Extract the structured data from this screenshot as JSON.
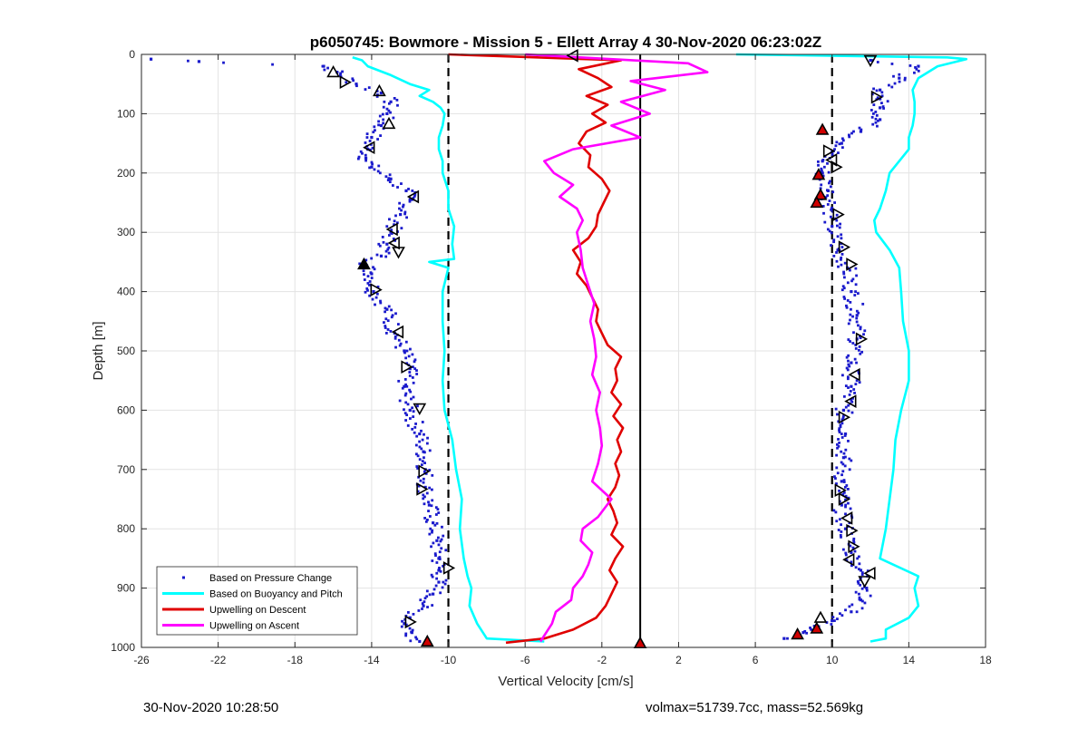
{
  "chart_data": {
    "type": "scatter",
    "title": "p6050745: Bowmore - Mission 5 - Ellett Array 4 30-Nov-2020 06:23:02Z",
    "xlabel": "Vertical Velocity [cm/s]",
    "ylabel": "Depth [m]",
    "xlim": [
      -26,
      18
    ],
    "ylim": [
      0,
      1000
    ],
    "y_reversed": true,
    "grid": true,
    "legend_position": "bottom-left",
    "x_ticks": [
      -26,
      -22,
      -18,
      -14,
      -10,
      -6,
      -2,
      2,
      6,
      10,
      14,
      18
    ],
    "y_ticks": [
      0,
      100,
      200,
      300,
      400,
      500,
      600,
      700,
      800,
      900,
      1000
    ],
    "reference_lines": [
      {
        "x": -10,
        "style": "dashed",
        "color": "#000000"
      },
      {
        "x": 10,
        "style": "dashed",
        "color": "#000000"
      },
      {
        "x": 0,
        "style": "solid",
        "color": "#000000"
      }
    ],
    "series": [
      {
        "name": "Based on Pressure Change",
        "style": "dots",
        "color": "#1a1acc",
        "profiles": [
          {
            "depth": [
              8,
              12,
              20,
              30,
              50,
              65,
              80,
              100,
              120,
              140,
              160,
              175,
              190,
              210,
              230,
              245,
              270,
              300,
              320,
              340,
              355,
              370,
              400,
              430,
              470,
              500,
              530,
              560,
              600,
              640,
              670,
              700,
              730,
              760,
              790,
              820,
              850,
              870,
              890,
              910,
              930,
              950,
              960,
              975,
              990
            ],
            "velocity": [
              -25.5,
              -23,
              -16.5,
              -15.8,
              -14.8,
              -13.5,
              -13,
              -13.2,
              -13.5,
              -14,
              -14.2,
              -14.3,
              -14,
              -13,
              -12.2,
              -12,
              -12.5,
              -13,
              -13.2,
              -13.5,
              -14.3,
              -14,
              -13.9,
              -13.2,
              -12.8,
              -12.3,
              -12,
              -12.3,
              -12,
              -11.5,
              -11.3,
              -11.2,
              -11.2,
              -11,
              -10.8,
              -10.6,
              -10.5,
              -10.5,
              -10.5,
              -10.8,
              -11.3,
              -12,
              -12.3,
              -11.9,
              -11.5
            ]
          },
          {
            "depth": [
              10,
              20,
              40,
              60,
              75,
              90,
              110,
              130,
              150,
              165,
              180,
              200,
              230,
              260,
              290,
              330,
              360,
              400,
              440,
              480,
              520,
              560,
              600,
              640,
              680,
              720,
              760,
              800,
              840,
              870,
              900,
              920,
              940,
              955,
              965,
              975,
              985
            ],
            "velocity": [
              12,
              14.5,
              13.5,
              12.5,
              12.5,
              12.5,
              12.5,
              11.5,
              10.5,
              10,
              9.5,
              9.5,
              9.8,
              10,
              10,
              10.3,
              10.8,
              11,
              11.3,
              11.3,
              11,
              11,
              10.6,
              10.7,
              10.6,
              10.5,
              10.5,
              10.7,
              11,
              11.5,
              11.8,
              11.5,
              11,
              10,
              9.3,
              8.5,
              7.5
            ]
          }
        ]
      },
      {
        "name": "Based on Buoyancy and Pitch",
        "style": "line",
        "color": "#00ffff",
        "profiles": [
          {
            "depth": [
              5,
              10,
              20,
              35,
              50,
              60,
              70,
              80,
              90,
              100,
              120,
              140,
              160,
              180,
              200,
              230,
              260,
              290,
              320,
              345,
              350,
              360,
              400,
              450,
              500,
              550,
              600,
              650,
              700,
              750,
              800,
              850,
              880,
              900,
              930,
              960,
              985,
              990
            ],
            "velocity": [
              -15,
              -14.5,
              -14.2,
              -13,
              -12,
              -11,
              -11.5,
              -10.8,
              -10.4,
              -10.2,
              -10.3,
              -10.5,
              -10.5,
              -10.3,
              -10.3,
              -10,
              -10,
              -9.7,
              -9.8,
              -9.7,
              -11,
              -10,
              -10.3,
              -10.3,
              -10.2,
              -10.3,
              -10.2,
              -9.8,
              -9.6,
              -9.3,
              -9.4,
              -9.2,
              -9,
              -8.8,
              -8.9,
              -8.5,
              -8,
              -5
            ]
          },
          {
            "depth": [
              0,
              5,
              8,
              20,
              40,
              60,
              80,
              100,
              120,
              140,
              160,
              180,
              200,
              230,
              260,
              280,
              300,
              330,
              360,
              400,
              450,
              500,
              550,
              600,
              650,
              700,
              750,
              800,
              850,
              880,
              900,
              930,
              950,
              970,
              985,
              990
            ],
            "velocity": [
              5,
              16,
              17,
              15.5,
              14.5,
              14.2,
              14.3,
              14.3,
              14.2,
              14,
              14,
              13.5,
              13,
              12.8,
              12.5,
              12.2,
              12.3,
              13,
              13.5,
              13.6,
              13.7,
              14,
              14,
              13.6,
              13.3,
              13.2,
              13,
              12.8,
              12.5,
              14.5,
              14.3,
              14.5,
              14,
              12.8,
              12.8,
              12
            ]
          }
        ]
      },
      {
        "name": "Upwelling on Descent",
        "style": "line",
        "color": "#e00000",
        "profiles": [
          {
            "depth": [
              0,
              10,
              25,
              40,
              55,
              70,
              85,
              100,
              115,
              130,
              150,
              170,
              190,
              210,
              230,
              250,
              270,
              290,
              310,
              330,
              350,
              370,
              390,
              410,
              430,
              450,
              470,
              490,
              510,
              530,
              550,
              570,
              590,
              610,
              630,
              650,
              670,
              690,
              710,
              730,
              750,
              770,
              790,
              810,
              830,
              850,
              870,
              890,
              910,
              930,
              950,
              970,
              985,
              992
            ],
            "velocity": [
              -10,
              -1,
              -3.2,
              -2.2,
              -1.5,
              -2.8,
              -1.7,
              -2.5,
              -1.8,
              -2.8,
              -3.2,
              -2.6,
              -2.7,
              -2,
              -1.6,
              -1.9,
              -2.2,
              -2.3,
              -2.7,
              -3.5,
              -3.1,
              -3.3,
              -2.8,
              -2.5,
              -2.2,
              -2.3,
              -2,
              -1.7,
              -1,
              -1.3,
              -1.2,
              -1.5,
              -1,
              -1.4,
              -0.9,
              -1.2,
              -1,
              -1.3,
              -1.1,
              -1.3,
              -1.7,
              -1.4,
              -1.2,
              -1.5,
              -0.9,
              -1.3,
              -1.6,
              -1.2,
              -1.5,
              -1.8,
              -2.3,
              -3.5,
              -5,
              -7
            ]
          }
        ]
      },
      {
        "name": "Upwelling on Ascent",
        "style": "line",
        "color": "#ff00ff",
        "profiles": [
          {
            "depth": [
              0,
              15,
              30,
              45,
              60,
              80,
              100,
              120,
              140,
              160,
              180,
              200,
              220,
              240,
              260,
              280,
              300,
              330,
              360,
              390,
              420,
              450,
              480,
              510,
              540,
              570,
              600,
              630,
              660,
              690,
              720,
              750,
              780,
              800,
              820,
              840,
              860,
              880,
              900,
              920,
              940,
              960,
              980,
              990
            ],
            "velocity": [
              -6,
              2.5,
              3.5,
              -0.5,
              1.3,
              -1,
              0.5,
              -1.5,
              0,
              -3.5,
              -5,
              -4.5,
              -3.5,
              -4.2,
              -3.3,
              -3,
              -3.3,
              -3.1,
              -3,
              -2.7,
              -2.4,
              -2.6,
              -2.4,
              -2.3,
              -2.5,
              -2.1,
              -2.3,
              -2.1,
              -2,
              -2.2,
              -2.5,
              -1.5,
              -2.2,
              -3,
              -3.1,
              -2.5,
              -2.7,
              -3,
              -3.5,
              -3.6,
              -4.4,
              -4.6,
              -5,
              -5.2
            ]
          }
        ]
      }
    ],
    "triangle_markers": [
      {
        "x": -16,
        "y": 30,
        "dir": "up",
        "fill": "none"
      },
      {
        "x": -15.4,
        "y": 47,
        "dir": "right",
        "fill": "none"
      },
      {
        "x": -13.6,
        "y": 62,
        "dir": "up",
        "fill": "none"
      },
      {
        "x": -13.1,
        "y": 117,
        "dir": "up",
        "fill": "none"
      },
      {
        "x": -14.1,
        "y": 157,
        "dir": "left",
        "fill": "none"
      },
      {
        "x": -11.8,
        "y": 240,
        "dir": "left",
        "fill": "none"
      },
      {
        "x": -12.9,
        "y": 295,
        "dir": "left",
        "fill": "none"
      },
      {
        "x": -12.8,
        "y": 318,
        "dir": "left",
        "fill": "none"
      },
      {
        "x": -12.6,
        "y": 333,
        "dir": "down",
        "fill": "none"
      },
      {
        "x": -14.4,
        "y": 354,
        "dir": "up",
        "fill": "#000"
      },
      {
        "x": -13.8,
        "y": 397,
        "dir": "right",
        "fill": "none"
      },
      {
        "x": -12.6,
        "y": 468,
        "dir": "left",
        "fill": "none"
      },
      {
        "x": -12.2,
        "y": 527,
        "dir": "right",
        "fill": "none"
      },
      {
        "x": -11.5,
        "y": 597,
        "dir": "down",
        "fill": "none"
      },
      {
        "x": -11.3,
        "y": 703,
        "dir": "right",
        "fill": "none"
      },
      {
        "x": -11.4,
        "y": 733,
        "dir": "right",
        "fill": "none"
      },
      {
        "x": -10,
        "y": 866,
        "dir": "right",
        "fill": "none"
      },
      {
        "x": -12,
        "y": 957,
        "dir": "right",
        "fill": "none"
      },
      {
        "x": -11.1,
        "y": 990,
        "dir": "up",
        "fill": "#d00000"
      },
      {
        "x": -3.5,
        "y": 2,
        "dir": "left",
        "fill": "none"
      },
      {
        "x": 0,
        "y": 993,
        "dir": "up",
        "fill": "#d00000"
      },
      {
        "x": 12,
        "y": 10,
        "dir": "down",
        "fill": "none"
      },
      {
        "x": 12.3,
        "y": 72,
        "dir": "right",
        "fill": "none"
      },
      {
        "x": 9.5,
        "y": 127,
        "dir": "up",
        "fill": "#d00000"
      },
      {
        "x": 9.8,
        "y": 163,
        "dir": "right",
        "fill": "none"
      },
      {
        "x": 10,
        "y": 178,
        "dir": "left",
        "fill": "none"
      },
      {
        "x": 10.2,
        "y": 190,
        "dir": "right",
        "fill": "none"
      },
      {
        "x": 9.3,
        "y": 203,
        "dir": "up",
        "fill": "#d00000"
      },
      {
        "x": 9.4,
        "y": 237,
        "dir": "up",
        "fill": "#d00000"
      },
      {
        "x": 9.2,
        "y": 250,
        "dir": "up",
        "fill": "#d00000"
      },
      {
        "x": 10.3,
        "y": 270,
        "dir": "right",
        "fill": "none"
      },
      {
        "x": 10.6,
        "y": 325,
        "dir": "right",
        "fill": "none"
      },
      {
        "x": 11,
        "y": 354,
        "dir": "right",
        "fill": "none"
      },
      {
        "x": 11.5,
        "y": 480,
        "dir": "right",
        "fill": "none"
      },
      {
        "x": 11.2,
        "y": 540,
        "dir": "left",
        "fill": "none"
      },
      {
        "x": 11,
        "y": 585,
        "dir": "left",
        "fill": "none"
      },
      {
        "x": 10.6,
        "y": 612,
        "dir": "right",
        "fill": "none"
      },
      {
        "x": 10.4,
        "y": 735,
        "dir": "right",
        "fill": "none"
      },
      {
        "x": 10.6,
        "y": 750,
        "dir": "right",
        "fill": "none"
      },
      {
        "x": 10.8,
        "y": 782,
        "dir": "left",
        "fill": "none"
      },
      {
        "x": 11,
        "y": 803,
        "dir": "right",
        "fill": "none"
      },
      {
        "x": 11.1,
        "y": 830,
        "dir": "right",
        "fill": "none"
      },
      {
        "x": 10.9,
        "y": 852,
        "dir": "left",
        "fill": "none"
      },
      {
        "x": 12,
        "y": 875,
        "dir": "left",
        "fill": "none"
      },
      {
        "x": 11.7,
        "y": 888,
        "dir": "down",
        "fill": "none"
      },
      {
        "x": 9.4,
        "y": 950,
        "dir": "up",
        "fill": "none"
      },
      {
        "x": 9.2,
        "y": 968,
        "dir": "up",
        "fill": "#d00000"
      },
      {
        "x": 8.2,
        "y": 978,
        "dir": "up",
        "fill": "#d00000"
      }
    ]
  },
  "footer": {
    "timestamp": "30-Nov-2020 10:28:50",
    "info": "volmax=51739.7cc, mass=52.569kg"
  }
}
